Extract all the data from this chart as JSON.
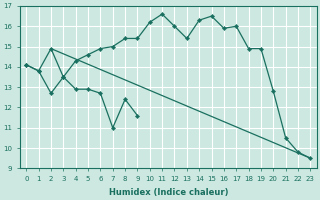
{
  "xlabel": "Humidex (Indice chaleur)",
  "bg_color": "#cce8e0",
  "grid_color": "#ffffff",
  "line_color": "#1a7060",
  "xlim": [
    -0.5,
    23.5
  ],
  "ylim": [
    9,
    17
  ],
  "yticks": [
    9,
    10,
    11,
    12,
    13,
    14,
    15,
    16,
    17
  ],
  "xticks": [
    0,
    1,
    2,
    3,
    4,
    5,
    6,
    7,
    8,
    9,
    10,
    11,
    12,
    13,
    14,
    15,
    16,
    17,
    18,
    19,
    20,
    21,
    22,
    23
  ],
  "series1_x": [
    0,
    1,
    2,
    3,
    4,
    5,
    6,
    7,
    8,
    9,
    10,
    11,
    12,
    13,
    14,
    15,
    16,
    17,
    18,
    19,
    20,
    21,
    22,
    23
  ],
  "series1_y": [
    14.1,
    13.8,
    14.9,
    13.5,
    14.3,
    14.6,
    14.9,
    15.0,
    15.4,
    15.4,
    16.2,
    16.6,
    16.0,
    15.4,
    16.3,
    16.5,
    15.9,
    16.0,
    14.9,
    14.9,
    12.8,
    10.5,
    9.8,
    9.5
  ],
  "series2_x": [
    0,
    1,
    2,
    3,
    4,
    5,
    6,
    7,
    8,
    9,
    10,
    11,
    12,
    13,
    14,
    15,
    16,
    17,
    18,
    19,
    20,
    21,
    22,
    23
  ],
  "series2_y": [
    14.1,
    13.8,
    12.7,
    13.5,
    12.9,
    12.9,
    12.7,
    11.0,
    12.4,
    11.6,
    null,
    null,
    null,
    null,
    null,
    null,
    null,
    null,
    null,
    null,
    null,
    null,
    null,
    null
  ],
  "series3_x": [
    2,
    23
  ],
  "series3_y": [
    14.9,
    9.5
  ]
}
